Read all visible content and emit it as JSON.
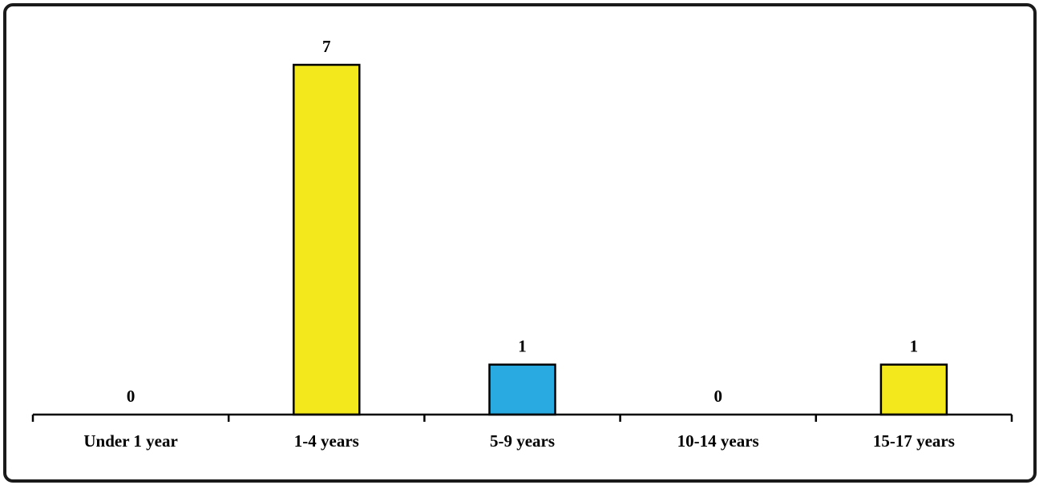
{
  "chart_data": {
    "type": "bar",
    "categories": [
      "Under 1 year",
      "1-4 years",
      "5-9 years",
      "10-14 years",
      "15-17 years"
    ],
    "values": [
      0,
      7,
      1,
      0,
      1
    ],
    "data_labels": [
      "0",
      "7",
      "1",
      "0",
      "1"
    ],
    "bar_colors": [
      "#f2e81c",
      "#f2e81c",
      "#29abe2",
      "#f2e81c",
      "#f2e81c"
    ],
    "title": "",
    "xlabel": "",
    "ylabel": "",
    "ylim": [
      0,
      7
    ],
    "grid": false,
    "legend": "none"
  }
}
